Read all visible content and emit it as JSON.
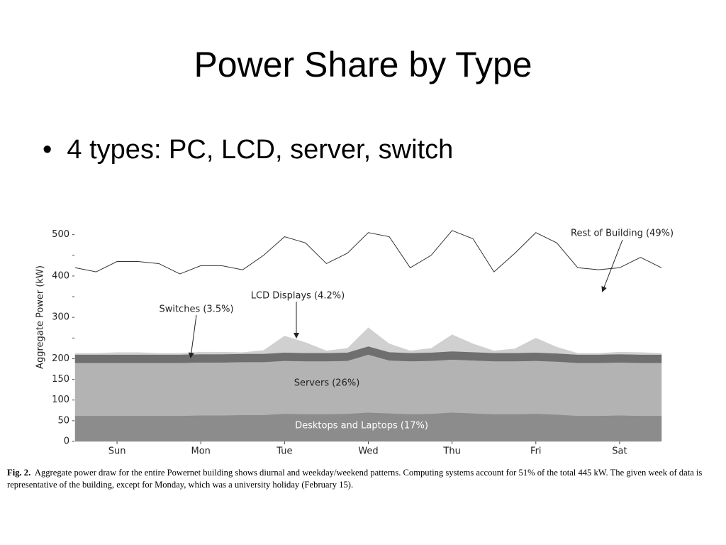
{
  "slide": {
    "title": "Power Share by Type",
    "bullets": [
      "4 types: PC, LCD, server, switch"
    ]
  },
  "caption": {
    "label": "Fig. 2.",
    "text": "Aggregate power draw for the entire Powernet building shows diurnal and weekday/weekend patterns. Computing systems account for 51% of the total 445 kW. The given week of data is representative of the building, except for Monday, which was a university holiday (February 15)."
  },
  "chart_data": {
    "type": "area",
    "stacked": true,
    "ylabel": "Aggregate Power (kW)",
    "x": [
      0,
      0.25,
      0.5,
      0.75,
      1,
      1.25,
      1.5,
      1.75,
      2,
      2.25,
      2.5,
      2.75,
      3,
      3.25,
      3.5,
      3.75,
      4,
      4.25,
      4.5,
      4.75,
      5,
      5.25,
      5.5,
      5.75,
      6,
      6.25,
      6.5,
      6.75,
      7
    ],
    "xlim": [
      0,
      7
    ],
    "xticks": [
      {
        "value": 0.5,
        "label": "Sun"
      },
      {
        "value": 1.5,
        "label": "Mon"
      },
      {
        "value": 2.5,
        "label": "Tue"
      },
      {
        "value": 3.5,
        "label": "Wed"
      },
      {
        "value": 4.5,
        "label": "Thu"
      },
      {
        "value": 5.5,
        "label": "Fri"
      },
      {
        "value": 6.5,
        "label": "Sat"
      }
    ],
    "ylim": [
      0,
      520
    ],
    "yticks": [
      0,
      50,
      100,
      150,
      200,
      300,
      400,
      500
    ],
    "y_minor_ticks": [
      250,
      350,
      450
    ],
    "series": [
      {
        "name": "Desktops and Laptops (17%)",
        "color": "#8c8c8c",
        "values": [
          62,
          62,
          62,
          62,
          62,
          62,
          63,
          63,
          64,
          64,
          67,
          66,
          66,
          67,
          70,
          68,
          66,
          67,
          70,
          68,
          66,
          66,
          67,
          65,
          62,
          62,
          63,
          62,
          62
        ]
      },
      {
        "name": "Servers (26%)",
        "color": "#b3b3b3",
        "values": [
          128,
          128,
          128,
          128,
          128,
          128,
          128,
          128,
          128,
          128,
          128,
          128,
          128,
          128,
          140,
          128,
          128,
          128,
          128,
          128,
          128,
          128,
          128,
          128,
          128,
          128,
          128,
          128,
          128
        ]
      },
      {
        "name": "Switches (3.5%)",
        "color": "#6f6f6f",
        "values": [
          20,
          20,
          20,
          20,
          20,
          20,
          20,
          20,
          20,
          20,
          20,
          20,
          20,
          20,
          20,
          20,
          20,
          20,
          20,
          20,
          20,
          20,
          20,
          20,
          20,
          20,
          20,
          20,
          20
        ]
      },
      {
        "name": "LCD Displays (4.2%)",
        "color": "#d0d0d0",
        "values": [
          3,
          3,
          5,
          5,
          3,
          3,
          5,
          5,
          3,
          8,
          40,
          25,
          5,
          10,
          45,
          20,
          5,
          10,
          40,
          20,
          5,
          10,
          35,
          15,
          3,
          3,
          5,
          5,
          3
        ]
      },
      {
        "name": "Rest of Building (49%)",
        "color": "#333333",
        "fill": false,
        "values": [
          207,
          197,
          220,
          220,
          217,
          192,
          209,
          209,
          200,
          230,
          240,
          241,
          211,
          230,
          230,
          259,
          201,
          225,
          252,
          254,
          191,
          231,
          255,
          252,
          207,
          202,
          204,
          230,
          207
        ]
      }
    ]
  }
}
